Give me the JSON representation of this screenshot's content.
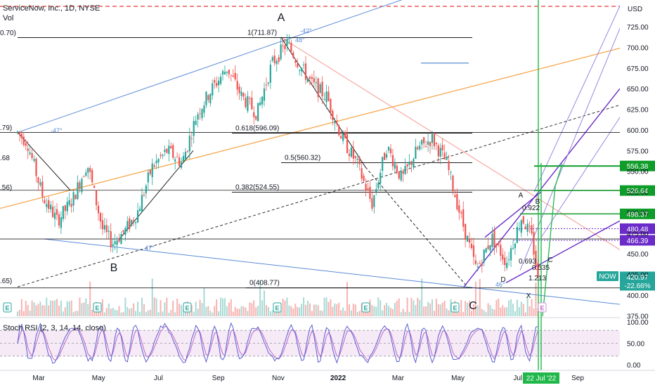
{
  "header": {
    "title": "ServiceNow, Inc., 1D, NYSE",
    "volume_label": "Vol"
  },
  "colors": {
    "up": "#26a69a",
    "down": "#ef5350",
    "fib": "#000000",
    "channel_blue": "#5b8bd6",
    "orange_line": "#f5a142",
    "salmon_line": "#f4a8a0",
    "green_tag": "#0f9d2a",
    "purple_tag": "#6a2bc8",
    "now_tag": "#26a69a",
    "red_dashed": "#e53935",
    "rsi_k": "#5b5fcf",
    "rsi_d": "#ba68c8"
  },
  "icons": [
    "earnings-e-icon"
  ],
  "chart_data": {
    "type": "candlestick",
    "title": "ServiceNow, Inc., 1D, NYSE",
    "currency": "USD",
    "y_ticks": [
      725,
      700,
      675,
      650,
      625,
      600,
      575,
      550,
      525,
      500,
      475,
      450,
      425,
      400,
      375
    ],
    "ylim": [
      372,
      730
    ],
    "x_ticks": [
      "Mar",
      "May",
      "Jul",
      "Sep",
      "Nov",
      "2022",
      "Mar",
      "May",
      "Jul",
      "Sep"
    ],
    "x_tick_months": [
      "2021-03",
      "2021-05",
      "2021-07",
      "2021-09",
      "2021-11",
      "2022-01",
      "2022-03",
      "2022-05",
      "2022-07",
      "2022-09"
    ],
    "x_range_months": [
      "2021-02",
      "2022-09"
    ],
    "current_date_label": "22 Jul '22",
    "close_trend_points": [
      {
        "date": "2021-02-10",
        "close": 597
      },
      {
        "date": "2021-02-20",
        "close": 585
      },
      {
        "date": "2021-03-05",
        "close": 520
      },
      {
        "date": "2021-03-20",
        "close": 490
      },
      {
        "date": "2021-04-05",
        "close": 515
      },
      {
        "date": "2021-04-20",
        "close": 560
      },
      {
        "date": "2021-05-05",
        "close": 480
      },
      {
        "date": "2021-05-15",
        "close": 463
      },
      {
        "date": "2021-05-28",
        "close": 478
      },
      {
        "date": "2021-06-10",
        "close": 500
      },
      {
        "date": "2021-06-25",
        "close": 555
      },
      {
        "date": "2021-07-10",
        "close": 575
      },
      {
        "date": "2021-07-25",
        "close": 560
      },
      {
        "date": "2021-08-10",
        "close": 620
      },
      {
        "date": "2021-08-25",
        "close": 650
      },
      {
        "date": "2021-09-10",
        "close": 675
      },
      {
        "date": "2021-09-25",
        "close": 640
      },
      {
        "date": "2021-10-10",
        "close": 620
      },
      {
        "date": "2021-10-25",
        "close": 680
      },
      {
        "date": "2021-11-10",
        "close": 705
      },
      {
        "date": "2021-11-22",
        "close": 680
      },
      {
        "date": "2021-12-05",
        "close": 655
      },
      {
        "date": "2021-12-20",
        "close": 640
      },
      {
        "date": "2022-01-05",
        "close": 590
      },
      {
        "date": "2022-01-20",
        "close": 560
      },
      {
        "date": "2022-02-05",
        "close": 510
      },
      {
        "date": "2022-02-20",
        "close": 580
      },
      {
        "date": "2022-03-05",
        "close": 540
      },
      {
        "date": "2022-03-20",
        "close": 575
      },
      {
        "date": "2022-04-05",
        "close": 590
      },
      {
        "date": "2022-04-20",
        "close": 560
      },
      {
        "date": "2022-05-05",
        "close": 490
      },
      {
        "date": "2022-05-20",
        "close": 430
      },
      {
        "date": "2022-06-05",
        "close": 470
      },
      {
        "date": "2022-06-20",
        "close": 440
      },
      {
        "date": "2022-07-05",
        "close": 495
      },
      {
        "date": "2022-07-15",
        "close": 470
      },
      {
        "date": "2022-07-22",
        "close": 420.97
      }
    ],
    "fib_levels": [
      {
        "label": "1(711.87)",
        "value": 711.87
      },
      {
        "label": "0.618(596.09)",
        "value": 596.09
      },
      {
        "label": "0.5(560.32)",
        "value": 560.32
      },
      {
        "label": "0.382(524.55)",
        "value": 524.55
      },
      {
        "label": "0(408.77)",
        "value": 408.77
      }
    ],
    "left_cut_labels": [
      ".79)",
      ".68",
      ".56)",
      ".65)",
      "0.70)"
    ],
    "price_tags": [
      {
        "value": "556.38",
        "style": "green"
      },
      {
        "value": "526.64",
        "style": "green"
      },
      {
        "value": "498.37",
        "style": "green"
      },
      {
        "value": "480.48",
        "style": "purple"
      },
      {
        "value": "466.39",
        "style": "purple"
      },
      {
        "value": "420.97",
        "style": "now"
      },
      {
        "value": "-22.66%",
        "style": "now"
      }
    ],
    "now_label": "NOW",
    "wave_labels": [
      "A",
      "B",
      "C",
      "A",
      "B",
      "C",
      "D",
      "X"
    ],
    "pattern_ratios": [
      "0.922",
      "0.693",
      "0.535",
      "1.213"
    ],
    "angle_labels": [
      "-47°",
      "47°",
      "-42°",
      "48°",
      "46°"
    ],
    "indicator": {
      "name": "Stoch RSI (2, 3, 14, 14, close)",
      "y_ticks": [
        "100.00",
        "50.00",
        "0.00"
      ],
      "ylim": [
        0,
        100
      ],
      "bands": [
        80,
        20
      ]
    }
  }
}
